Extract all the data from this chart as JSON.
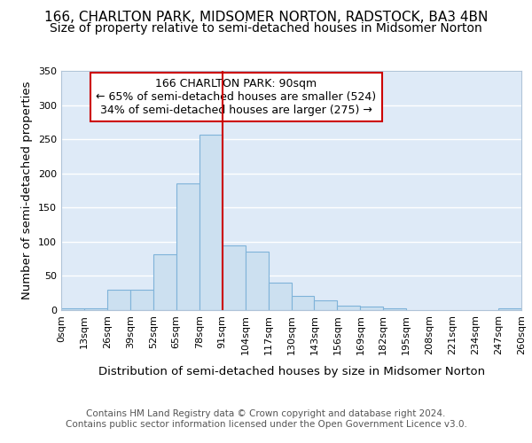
{
  "title_line1": "166, CHARLTON PARK, MIDSOMER NORTON, RADSTOCK, BA3 4BN",
  "title_line2": "Size of property relative to semi-detached houses in Midsomer Norton",
  "xlabel": "Distribution of semi-detached houses by size in Midsomer Norton",
  "ylabel": "Number of semi-detached properties",
  "bins": [
    0,
    13,
    26,
    39,
    52,
    65,
    78,
    91,
    104,
    117,
    130,
    143,
    156,
    169,
    182,
    195,
    208,
    221,
    234,
    247,
    260
  ],
  "bin_labels": [
    "0sqm",
    "13sqm",
    "26sqm",
    "39sqm",
    "52sqm",
    "65sqm",
    "78sqm",
    "91sqm",
    "104sqm",
    "117sqm",
    "130sqm",
    "143sqm",
    "156sqm",
    "169sqm",
    "182sqm",
    "195sqm",
    "208sqm",
    "221sqm",
    "234sqm",
    "247sqm",
    "260sqm"
  ],
  "counts": [
    2,
    2,
    30,
    30,
    82,
    185,
    257,
    95,
    86,
    40,
    21,
    14,
    6,
    5,
    2,
    0,
    0,
    0,
    0,
    2
  ],
  "bar_color": "#cce0f0",
  "bar_edge_color": "#7fb3d9",
  "vline_x": 91,
  "vline_color": "#cc0000",
  "annotation_line1": "166 CHARLTON PARK: 90sqm",
  "annotation_line2": "← 65% of semi-detached houses are smaller (524)",
  "annotation_line3": "34% of semi-detached houses are larger (275) →",
  "annotation_box_facecolor": "#ffffff",
  "annotation_box_edgecolor": "#cc0000",
  "ylim": [
    0,
    350
  ],
  "yticks": [
    0,
    50,
    100,
    150,
    200,
    250,
    300,
    350
  ],
  "fig_bg_color": "#ffffff",
  "plot_bg_color": "#deeaf7",
  "grid_color": "#ffffff",
  "footer": "Contains HM Land Registry data © Crown copyright and database right 2024.\nContains public sector information licensed under the Open Government Licence v3.0.",
  "title_fontsize": 11,
  "subtitle_fontsize": 10,
  "axis_label_fontsize": 9.5,
  "tick_fontsize": 8,
  "annotation_fontsize": 9,
  "footer_fontsize": 7.5
}
